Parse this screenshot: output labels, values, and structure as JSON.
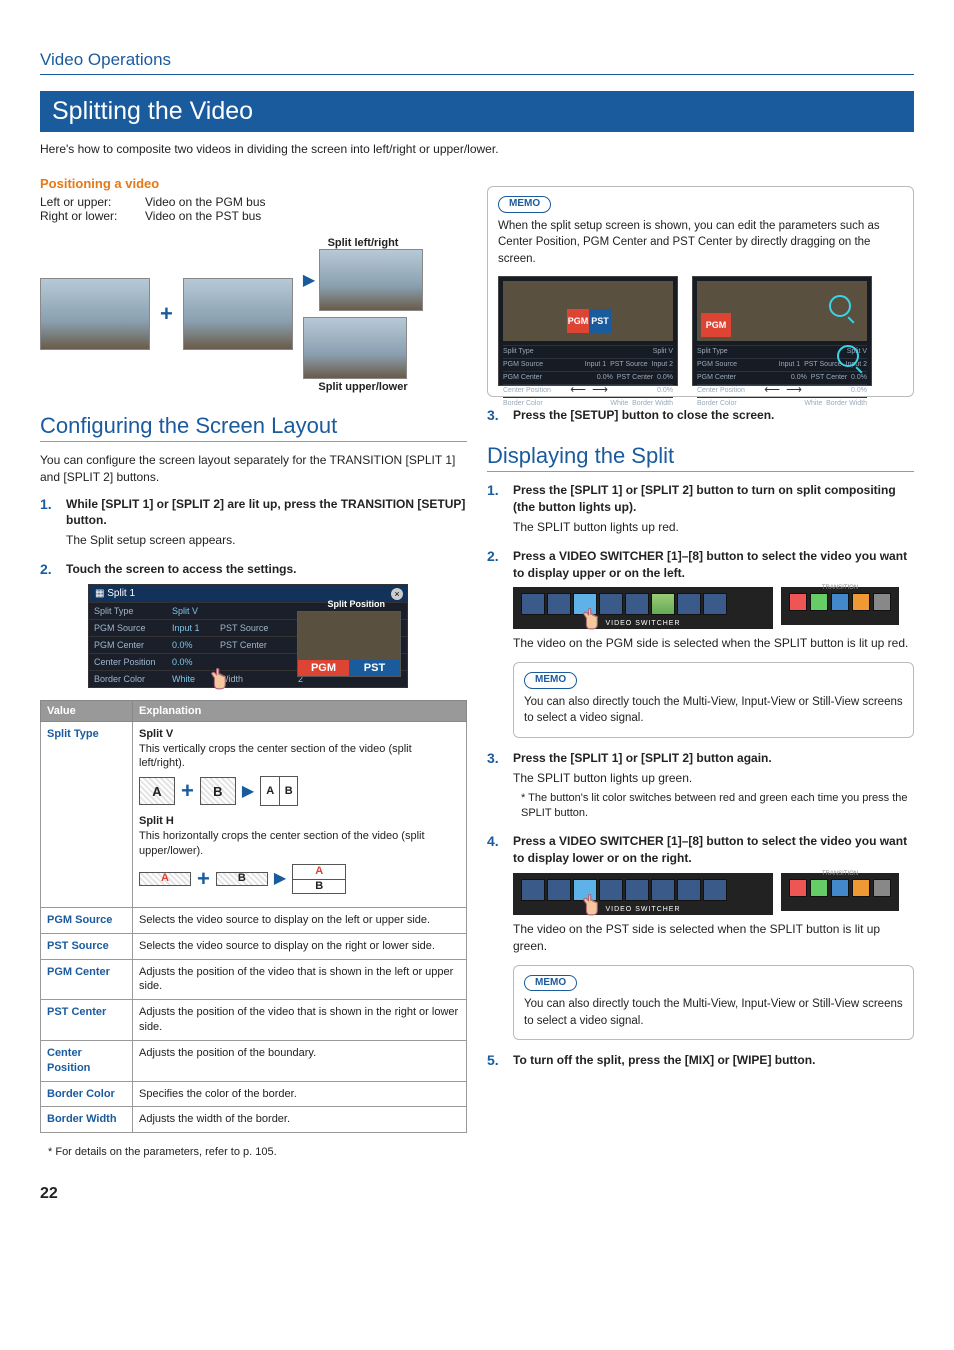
{
  "section": "Video Operations",
  "title": "Splitting the Video",
  "intro": "Here's how to composite two videos in dividing the screen into left/right or upper/lower.",
  "positioning": {
    "heading": "Positioning a video",
    "rows": [
      {
        "k": "Left or upper:",
        "v": "Video on the PGM bus"
      },
      {
        "k": "Right or lower:",
        "v": "Video on the PST bus"
      }
    ],
    "cap1": "Split left/right",
    "cap2": "Split upper/lower"
  },
  "configuring": {
    "heading": "Configuring the Screen Layout",
    "body": "You can configure the screen layout separately for the TRANSITION [SPLIT 1] and [SPLIT 2] buttons.",
    "steps": [
      {
        "t": "While [SPLIT 1] or [SPLIT 2] are lit up, press the TRANSITION [SETUP] button.",
        "b": "The Split setup screen appears."
      },
      {
        "t": "Touch the screen to access the settings."
      }
    ],
    "shot": {
      "title": "Split 1",
      "sp_label": "Split Position",
      "rows": [
        [
          "Split Type",
          "Split V",
          "",
          ""
        ],
        [
          "PGM Source",
          "Input 1",
          "PST Source",
          "Input 2"
        ],
        [
          "PGM Center",
          "0.0%",
          "PST Center",
          "0.0%"
        ],
        [
          "Center Position",
          "0.0%",
          "",
          ""
        ],
        [
          "Border Color",
          "White",
          "Width",
          "2"
        ]
      ],
      "pgm": "PGM",
      "pst": "PST"
    },
    "table": {
      "head": [
        "Value",
        "Explanation"
      ],
      "splittype": {
        "k": "Split Type",
        "v_title": "Split V",
        "v_body": "This vertically crops the center section of the video (split left/right).",
        "h_title": "Split H",
        "h_body": "This horizontally crops the center section of the video (split upper/lower)."
      },
      "rows": [
        [
          "PGM Source",
          "Selects the video source to display on the left or upper side."
        ],
        [
          "PST Source",
          "Selects the video source to display on the right or lower side."
        ],
        [
          "PGM Center",
          "Adjusts the position of the video that is shown in the left or upper side."
        ],
        [
          "PST Center",
          "Adjusts the position of the video that is shown in the right or lower side."
        ],
        [
          "Center Position",
          "Adjusts the position of the boundary."
        ],
        [
          "Border Color",
          "Specifies the color of the border."
        ],
        [
          "Border Width",
          "Adjusts the width of the border."
        ]
      ]
    },
    "footnote": "For details on the parameters, refer to p. 105."
  },
  "memo1": {
    "tag": "MEMO",
    "text": "When the split setup screen is shown, you can edit the parameters such as Center Position, PGM Center and PST Center by directly dragging on the screen."
  },
  "step3_right": "Press the [SETUP] button to close the screen.",
  "displaying": {
    "heading": "Displaying the Split",
    "steps": [
      {
        "t": "Press the [SPLIT 1] or [SPLIT 2] button to turn on split compositing (the button lights up).",
        "b": "The SPLIT button lights up red."
      },
      {
        "t": "Press a VIDEO SWITCHER [1]–[8] button to select the video you want to display upper or on the left.",
        "after": "The video on the PGM side is selected when the SPLIT button is lit up red."
      },
      {
        "t": "Press the [SPLIT 1] or [SPLIT 2] button again.",
        "b": "The SPLIT button lights up green.",
        "note": "The button's lit color switches between red and green each time you press the SPLIT button."
      },
      {
        "t": "Press a VIDEO SWITCHER [1]–[8] button to select the video you want to display lower or on the right.",
        "after": "The video on the PST side is selected when the SPLIT button is lit up green."
      },
      {
        "t": "To turn off the split, press the [MIX] or [WIPE] button."
      }
    ],
    "memo": {
      "tag": "MEMO",
      "text": "You can also directly touch the Multi-View, Input-View or Still-View screens to select a video signal."
    }
  },
  "page": "22",
  "labels": {
    "A": "A",
    "B": "B"
  }
}
